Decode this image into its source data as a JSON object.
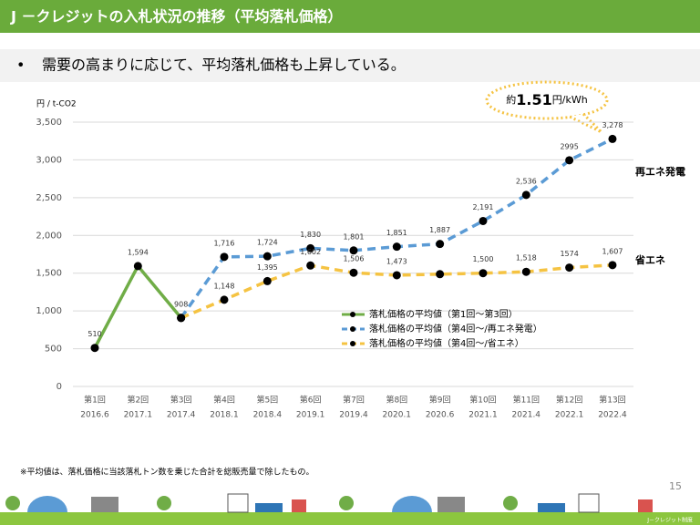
{
  "header": {
    "title": "J －クレジットの入札状況の推移（平均落札価格）"
  },
  "bullet": {
    "marker": "•",
    "text": "需要の高まりに応じて、平均落札価格も上昇している。"
  },
  "chart_data": {
    "type": "line",
    "y_label": "円 / t-CO2",
    "categories": [
      "第1回",
      "第2回",
      "第3回",
      "第4回",
      "第5回",
      "第6回",
      "第7回",
      "第8回",
      "第9回",
      "第10回",
      "第11回",
      "第12回",
      "第13回"
    ],
    "category_dates": [
      "2016.6",
      "2017.1",
      "2017.4",
      "2018.1",
      "2018.4",
      "2019.1",
      "2019.4",
      "2020.1",
      "2020.6",
      "2021.1",
      "2021.4",
      "2022.1",
      "2022.4"
    ],
    "series": [
      {
        "name": "落札価格の平均値（第1回～第3回）",
        "color": "#70ad47",
        "dash": false,
        "values": [
          510,
          1594,
          908,
          null,
          null,
          null,
          null,
          null,
          null,
          null,
          null,
          null,
          null
        ],
        "value_labels": [
          "510",
          "1,594",
          "908",
          null,
          null,
          null,
          null,
          null,
          null,
          null,
          null,
          null,
          null
        ]
      },
      {
        "name": "落札価格の平均値（第4回～/再エネ発電）",
        "color": "#5b9bd5",
        "dash": true,
        "values": [
          null,
          null,
          908,
          1716,
          1724,
          1830,
          1801,
          1851,
          1887,
          2191,
          2536,
          2995,
          3278
        ],
        "value_labels": [
          null,
          null,
          null,
          "1,716",
          "1,724",
          "1,830",
          "1,801",
          "1,851",
          "1,887",
          "2,191",
          "2,536",
          "2995",
          "3,278"
        ]
      },
      {
        "name": "落札価格の平均値（第4回～/省エネ）",
        "color": "#f5c342",
        "dash": true,
        "values": [
          null,
          null,
          908,
          1148,
          1395,
          1602,
          1506,
          1473,
          1487,
          1500,
          1518,
          1574,
          1607
        ],
        "value_labels": [
          null,
          null,
          null,
          "1,148",
          "1,395",
          "1,602",
          "1,506",
          "1,473",
          null,
          "1,500",
          "1,518",
          "1574",
          "1,607"
        ]
      }
    ],
    "ylim": [
      0,
      3500
    ],
    "yticks": [
      0,
      500,
      {
        "value": 1000,
        "label": "1,000"
      },
      {
        "value": 1500,
        "label": "1,500"
      },
      {
        "value": 2000,
        "label": "2,000"
      },
      {
        "value": 2500,
        "label": "2,500"
      },
      {
        "value": 3000,
        "label": "3,000"
      },
      {
        "value": 3500,
        "label": "3,500"
      }
    ],
    "grid": true,
    "annotations": {
      "renewable": "再エネ発電",
      "saving": "省エネ",
      "callout_prefix": "約",
      "callout_value": "1.51",
      "callout_suffix": "円/kWh"
    }
  },
  "footnote": "※平均値は、落札価格に当該落札トン数を乗じた合計を総販売量で除したもの。",
  "page_number": "15",
  "footer_label": "J－クレジット制度"
}
